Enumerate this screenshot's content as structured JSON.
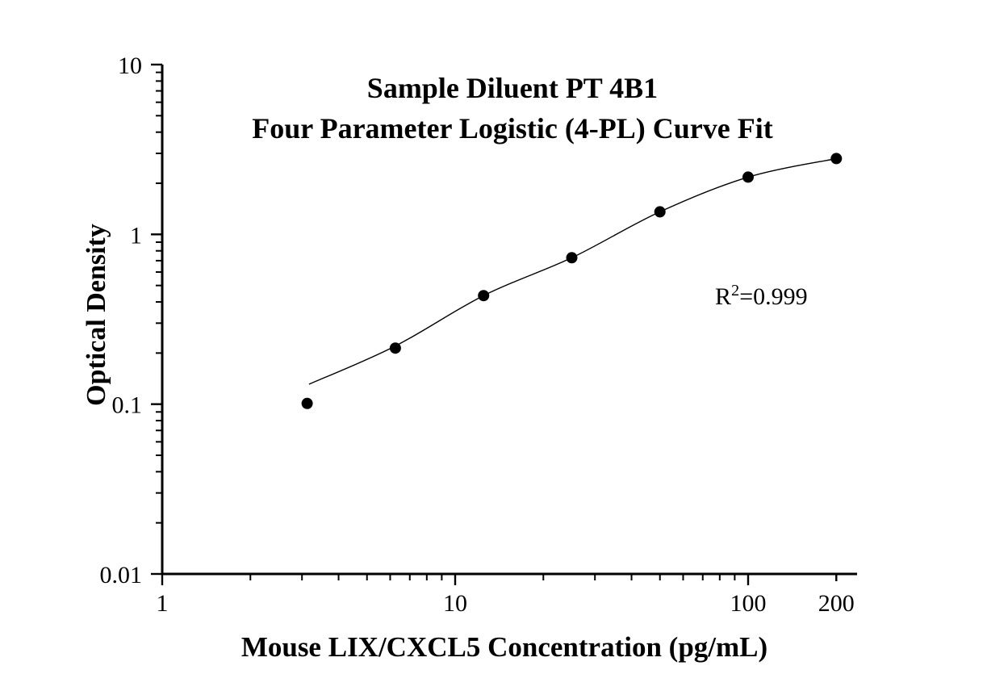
{
  "figure": {
    "title_line1": "Sample Diluent PT 4B1",
    "title_line2": "Four Parameter Logistic (4-PL) Curve Fit",
    "ylabel": "Optical Density",
    "xlabel": "Mouse LIX/CXCL5 Concentration (pg/mL)",
    "annotation": {
      "base": "R",
      "sup": "2",
      "rest": "=0.999"
    }
  },
  "chart_data": {
    "type": "scatter",
    "title": "Sample Diluent PT 4B1",
    "subtitle": "Four Parameter Logistic (4-PL) Curve Fit",
    "xlabel": "Mouse LIX/CXCL5 Concentration (pg/mL)",
    "ylabel": "Optical Density",
    "x_scale": "log",
    "y_scale": "log",
    "xlim": [
      1,
      233
    ],
    "ylim": [
      0.01,
      10
    ],
    "grid": false,
    "legend": "none",
    "r_squared": 0.999,
    "series": [
      {
        "name": "standard-data-points",
        "marker": "filled-circle",
        "x": [
          3.125,
          6.25,
          12.5,
          25,
          50,
          100,
          200
        ],
        "y": [
          0.101,
          0.214,
          0.436,
          0.728,
          1.358,
          2.175,
          2.796
        ]
      },
      {
        "name": "4pl-fit-curve",
        "marker": "none",
        "x": [
          3.17,
          6.25,
          12.5,
          25,
          50,
          100,
          200
        ],
        "y": [
          0.131,
          0.22,
          0.436,
          0.728,
          1.358,
          2.175,
          2.796
        ]
      }
    ],
    "x_ticks_major": [
      {
        "value": 1,
        "label": "1",
        "short": false
      },
      {
        "value": 10,
        "label": "10",
        "short": false
      },
      {
        "value": 100,
        "label": "100",
        "short": false
      },
      {
        "value": 200,
        "label": "200",
        "short": true
      }
    ],
    "x_ticks_minor": [
      2,
      3,
      4,
      5,
      6,
      7,
      8,
      9,
      20,
      30,
      40,
      50,
      60,
      70,
      80,
      90
    ],
    "y_ticks_major": [
      {
        "value": 10,
        "label": "10"
      },
      {
        "value": 1,
        "label": "1"
      },
      {
        "value": 0.1,
        "label": "0.1"
      },
      {
        "value": 0.01,
        "label": "0.01"
      }
    ],
    "y_ticks_minor": [
      0.02,
      0.03,
      0.04,
      0.05,
      0.06,
      0.07,
      0.08,
      0.09,
      0.2,
      0.3,
      0.4,
      0.5,
      0.6,
      0.7,
      0.8,
      0.9,
      2,
      3,
      4,
      5,
      6,
      7,
      8,
      9
    ],
    "colors": {
      "foreground": "#000000",
      "background": "#ffffff",
      "marker": "#000000",
      "curve": "#000000"
    }
  }
}
